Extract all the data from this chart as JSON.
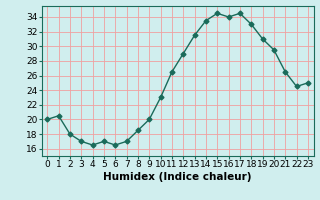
{
  "x": [
    0,
    1,
    2,
    3,
    4,
    5,
    6,
    7,
    8,
    9,
    10,
    11,
    12,
    13,
    14,
    15,
    16,
    17,
    18,
    19,
    20,
    21,
    22,
    23
  ],
  "y": [
    20,
    20.5,
    18,
    17,
    16.5,
    17,
    16.5,
    17,
    18.5,
    20,
    23,
    26.5,
    29,
    31.5,
    33.5,
    34.5,
    34,
    34.5,
    33,
    31,
    29.5,
    26.5,
    24.5,
    25
  ],
  "line_color": "#1a6b5a",
  "marker": "D",
  "marker_size": 2.5,
  "bg_color": "#d0eeee",
  "grid_color": "#f0a0a0",
  "xlabel": "Humidex (Indice chaleur)",
  "xlim": [
    -0.5,
    23.5
  ],
  "ylim": [
    15.0,
    35.5
  ],
  "yticks": [
    16,
    18,
    20,
    22,
    24,
    26,
    28,
    30,
    32,
    34
  ],
  "xticks": [
    0,
    1,
    2,
    3,
    4,
    5,
    6,
    7,
    8,
    9,
    10,
    11,
    12,
    13,
    14,
    15,
    16,
    17,
    18,
    19,
    20,
    21,
    22,
    23
  ],
  "tick_label_fontsize": 6.5,
  "xlabel_fontsize": 7.5
}
